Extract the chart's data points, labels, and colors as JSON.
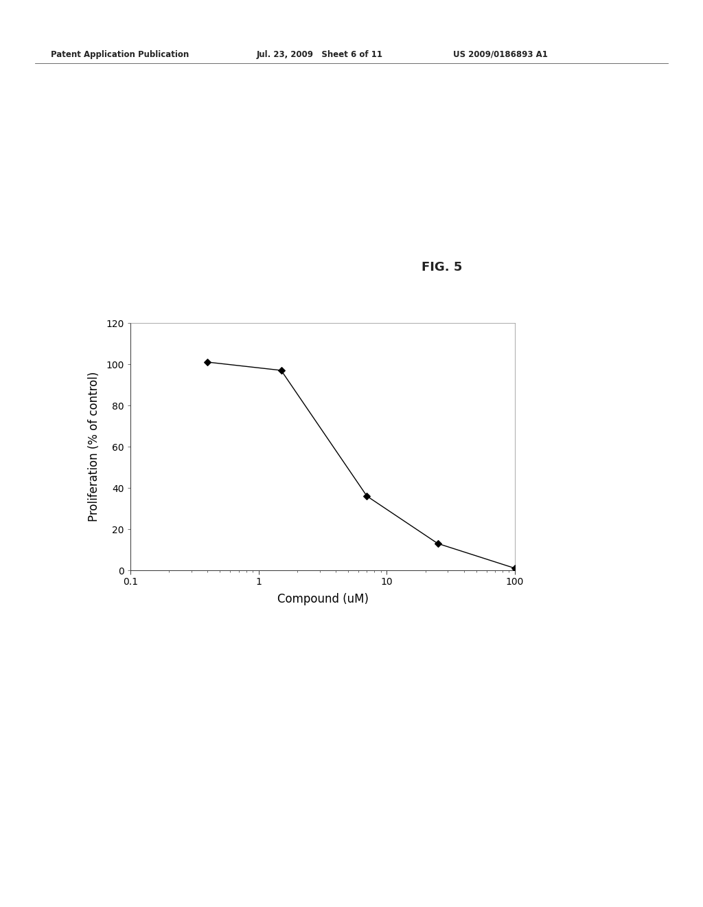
{
  "x_values": [
    0.4,
    1.5,
    7.0,
    25.0,
    100.0
  ],
  "y_values": [
    101,
    97,
    36,
    13,
    1
  ],
  "xlabel": "Compound (uM)",
  "ylabel": "Proliferation (% of control)",
  "fig_label": "FIG. 5",
  "header_left": "Patent Application Publication",
  "header_mid": "Jul. 23, 2009   Sheet 6 of 11",
  "header_right": "US 2009/0186893 A1",
  "xlim": [
    0.1,
    100
  ],
  "ylim": [
    0,
    120
  ],
  "yticks": [
    0,
    20,
    40,
    60,
    80,
    100,
    120
  ],
  "xtick_labels": [
    "0.1",
    "1",
    "10",
    "100"
  ],
  "xtick_vals": [
    0.1,
    1,
    10,
    100
  ],
  "line_color": "#000000",
  "marker": "D",
  "marker_size": 5,
  "marker_color": "#000000",
  "background_color": "#ffffff",
  "axis_label_fontsize": 12,
  "tick_fontsize": 10,
  "header_fontsize": 8.5
}
